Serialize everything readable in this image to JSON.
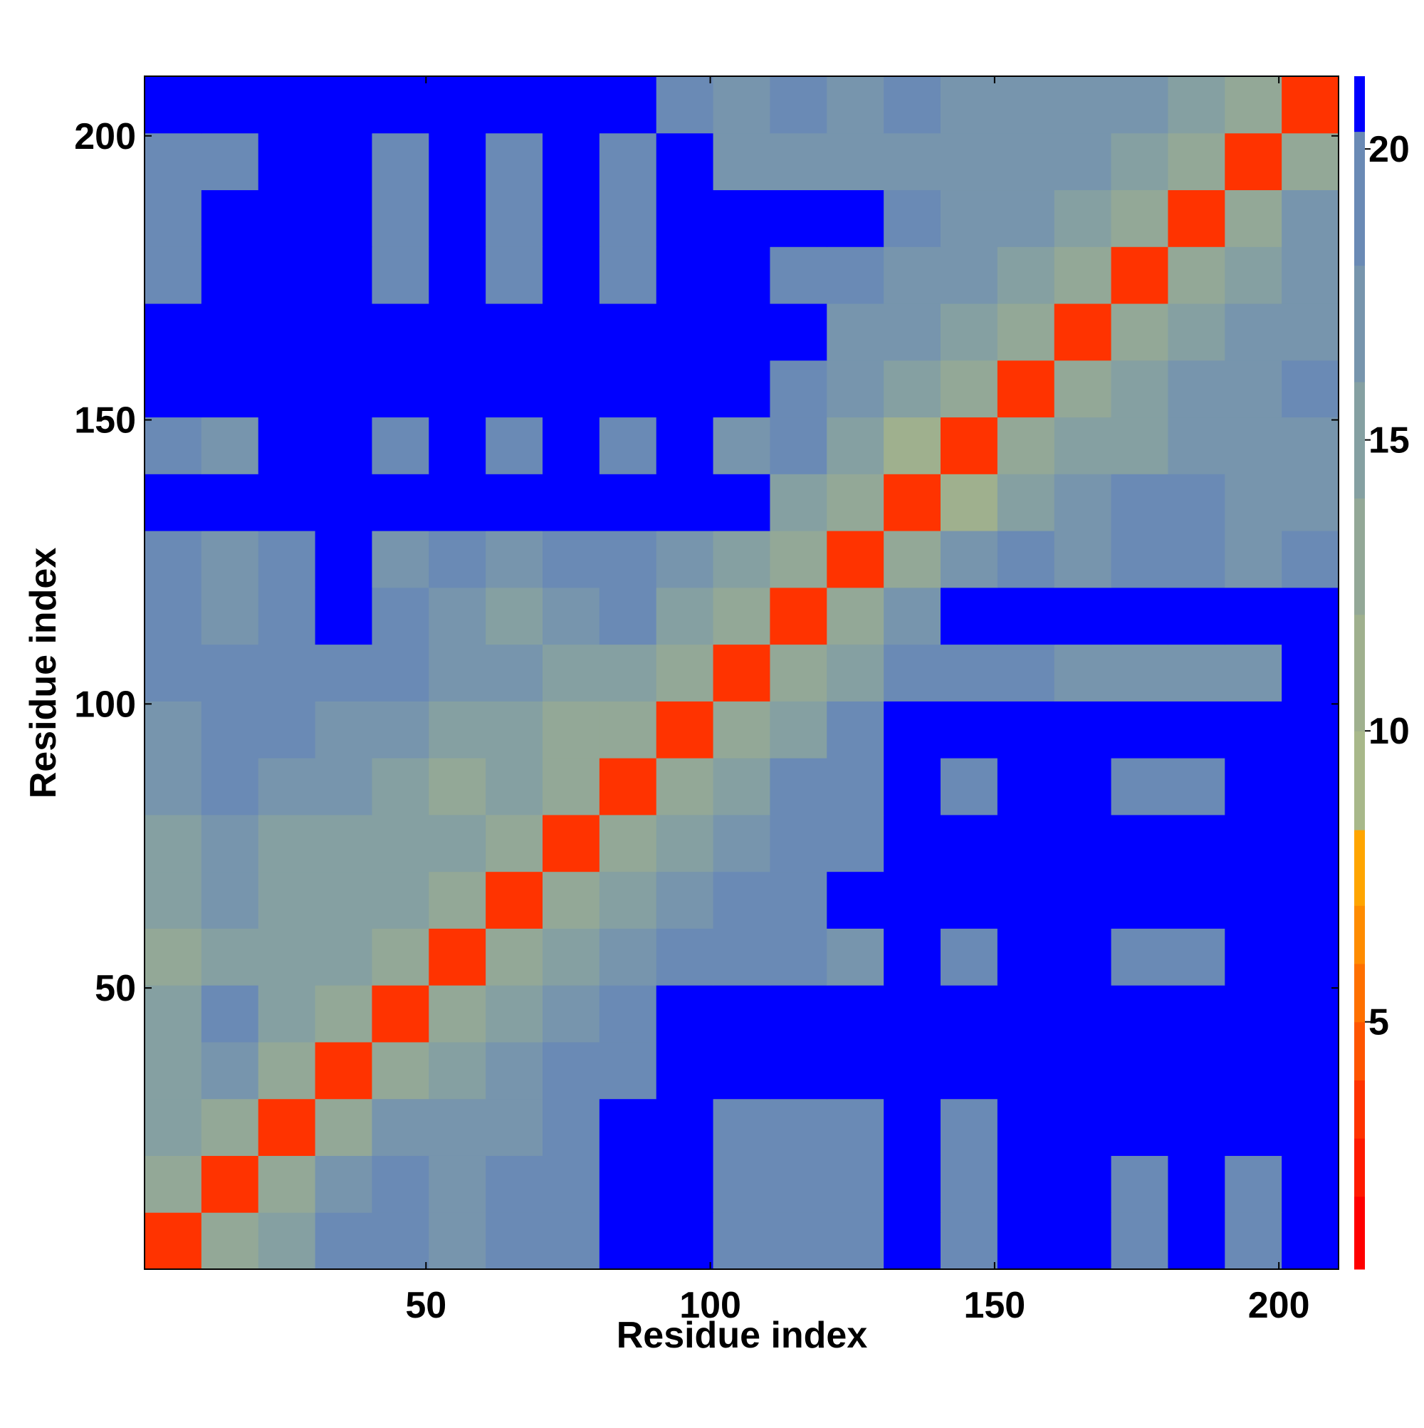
{
  "chart_data": {
    "type": "heatmap",
    "x_label": "Residue index",
    "y_label": "Residue index",
    "xbins": [
      0.5,
      10.5,
      20.5,
      30.5,
      40.5,
      50.5,
      60.5,
      70.5,
      80.5,
      90.5,
      100.5,
      110.5,
      120.5,
      130.5,
      140.5,
      150.5,
      160.5,
      170.5,
      180.5,
      190.5,
      200.5,
      210.5
    ],
    "ybins": [
      0.5,
      10.5,
      20.5,
      30.5,
      40.5,
      50.5,
      60.5,
      70.5,
      80.5,
      90.5,
      100.5,
      110.5,
      120.5,
      130.5,
      140.5,
      150.5,
      160.5,
      170.5,
      180.5,
      190.5,
      200.5,
      210.5
    ],
    "xlim": [
      0.5,
      210.5
    ],
    "ylim": [
      0.5,
      210.5
    ],
    "xticks": [
      50,
      100,
      150,
      200
    ],
    "yticks": [
      50,
      100,
      150,
      200
    ],
    "values": [
      [
        3,
        12,
        15,
        18,
        19,
        17,
        19,
        19,
        21,
        21,
        19,
        19,
        18,
        21,
        19,
        21,
        21,
        19,
        21,
        19,
        21
      ],
      [
        12,
        3,
        13,
        17,
        18,
        17,
        18,
        19,
        21,
        21,
        19,
        19,
        18,
        21,
        18,
        21,
        21,
        19,
        21,
        19,
        21
      ],
      [
        14,
        12,
        3,
        13,
        17,
        17,
        17,
        18,
        21,
        21,
        19,
        18,
        18,
        21,
        19,
        21,
        21,
        21,
        21,
        21,
        21
      ],
      [
        15,
        16,
        12,
        3,
        12,
        15,
        16,
        18,
        19,
        21,
        21,
        21,
        21,
        21,
        21,
        21,
        21,
        21,
        21,
        21,
        21
      ],
      [
        14,
        18,
        14,
        12,
        3,
        12,
        14,
        16,
        18,
        21,
        21,
        21,
        21,
        21,
        21,
        21,
        21,
        21,
        21,
        21,
        21
      ],
      [
        13,
        15,
        15,
        15,
        12,
        3,
        12,
        14,
        16,
        19,
        19,
        19,
        17,
        21,
        18,
        21,
        21,
        19,
        19,
        21,
        21
      ],
      [
        15,
        16,
        15,
        14,
        15,
        12,
        3,
        12,
        15,
        16,
        18,
        19,
        21,
        21,
        21,
        21,
        21,
        21,
        21,
        21,
        21
      ],
      [
        15,
        17,
        14,
        14,
        14,
        14,
        12,
        3,
        12,
        15,
        17,
        19,
        19,
        21,
        21,
        21,
        21,
        21,
        21,
        21,
        21
      ],
      [
        16,
        18,
        17,
        16,
        15,
        13,
        14,
        12,
        3,
        13,
        15,
        18,
        19,
        21,
        18,
        21,
        21,
        18,
        18,
        21,
        21
      ],
      [
        17,
        19,
        18,
        17,
        16,
        15,
        14,
        13,
        12,
        3,
        12,
        15,
        18,
        21,
        21,
        21,
        21,
        21,
        21,
        21,
        21
      ],
      [
        18,
        18,
        19,
        19,
        18,
        17,
        16,
        15,
        14,
        12,
        3,
        12,
        15,
        19,
        18,
        18,
        17,
        16,
        16,
        17,
        21
      ],
      [
        18,
        17,
        18,
        21,
        18,
        17,
        15,
        16,
        18,
        15,
        12,
        3,
        12,
        17,
        21,
        21,
        21,
        21,
        21,
        21,
        21
      ],
      [
        19,
        17,
        19,
        21,
        17,
        19,
        17,
        18,
        19,
        17,
        15,
        12,
        3,
        12,
        16,
        18,
        17,
        18,
        19,
        17,
        18
      ],
      [
        21,
        21,
        21,
        21,
        21,
        21,
        21,
        21,
        21,
        21,
        21,
        15,
        12,
        3,
        11,
        15,
        17,
        18,
        18,
        17,
        17
      ],
      [
        18,
        17,
        21,
        21,
        19,
        21,
        19,
        21,
        19,
        21,
        17,
        19,
        15,
        11,
        3,
        12,
        15,
        15,
        17,
        16,
        17
      ],
      [
        21,
        21,
        21,
        21,
        21,
        21,
        21,
        21,
        21,
        21,
        21,
        19,
        17,
        15,
        12,
        3,
        12,
        15,
        16,
        17,
        18
      ],
      [
        21,
        21,
        21,
        21,
        21,
        21,
        21,
        21,
        21,
        21,
        21,
        21,
        17,
        16,
        15,
        12,
        3,
        12,
        15,
        17,
        17
      ],
      [
        19,
        21,
        21,
        21,
        19,
        21,
        18,
        21,
        18,
        21,
        21,
        19,
        18,
        17,
        16,
        15,
        12,
        3,
        12,
        15,
        17
      ],
      [
        19,
        21,
        21,
        21,
        19,
        21,
        18,
        21,
        18,
        21,
        21,
        21,
        21,
        19,
        17,
        16,
        15,
        12,
        3,
        12,
        16
      ],
      [
        19,
        19,
        21,
        21,
        19,
        21,
        18,
        21,
        18,
        21,
        17,
        17,
        17,
        17,
        17,
        17,
        17,
        15,
        12,
        3,
        12
      ],
      [
        21,
        21,
        21,
        21,
        21,
        21,
        21,
        21,
        21,
        18,
        17,
        18,
        16,
        18,
        17,
        16,
        16,
        16,
        15,
        12,
        3
      ]
    ],
    "zlim": [
      0.75,
      21.25
    ],
    "zticks": [
      5,
      10,
      15,
      20
    ],
    "color_levels": [
      2,
      3,
      4,
      5,
      6,
      7,
      8.3,
      10,
      12,
      14,
      16,
      18,
      20.3
    ],
    "colors": [
      "#ff0000",
      "#ff1a00",
      "#ff3300",
      "#ff5500",
      "#ff7000",
      "#ff8c00",
      "#ffa500",
      "#a8b88a",
      "#9fb08e",
      "#93a897",
      "#85a0a2",
      "#7795ad",
      "#6a8ab5",
      "#0000ff"
    ]
  }
}
